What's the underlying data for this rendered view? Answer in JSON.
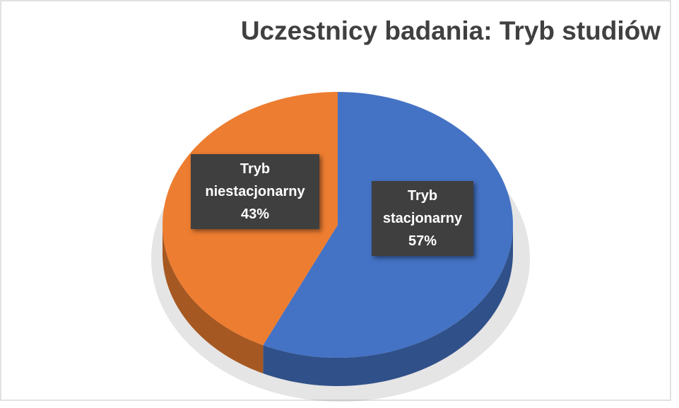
{
  "chart_data": {
    "type": "pie",
    "title": "Uczestnicy badania: Tryb studiów",
    "categories": [
      "Tryb stacjonarny",
      "Tryb niestacjonarny"
    ],
    "values": [
      57,
      43
    ],
    "value_labels": [
      "57%",
      "43%"
    ],
    "colors": [
      "#4472c4",
      "#ed7d31"
    ]
  }
}
